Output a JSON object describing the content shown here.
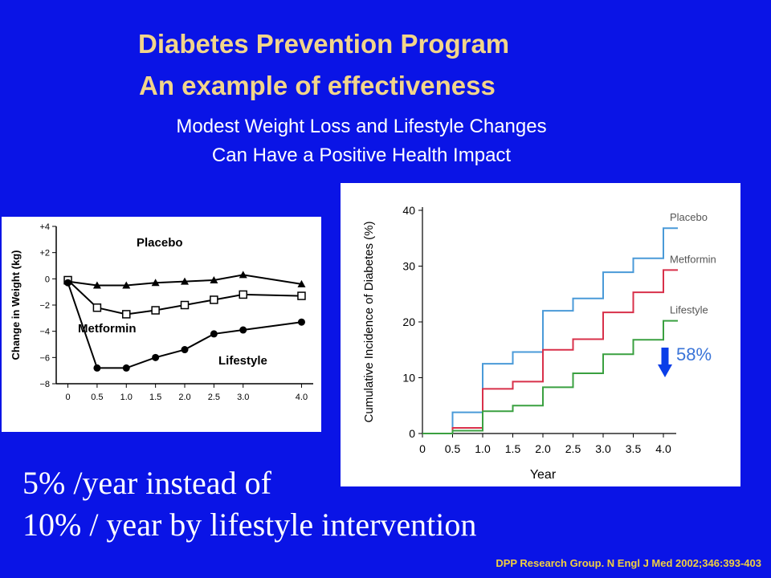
{
  "header": {
    "title_line1": "Diabetes Prevention Program",
    "title_line2": "An example of effectiveness",
    "subtitle_line1": "Modest Weight Loss and Lifestyle Changes",
    "subtitle_line2": "Can Have a Positive Health Impact"
  },
  "overlay_labels": {
    "placebo": "Placebo",
    "metformin": "Metformin",
    "lifestyle": "Lifestyle"
  },
  "reduction": {
    "label": "58%",
    "arrow_color": "#0a3ee8",
    "text_color": "#3a74d8"
  },
  "body": {
    "line1": "5% /year instead of",
    "line2": "10% / year by lifestyle intervention"
  },
  "citation": "DPP Research Group. N Engl J Med 2002;346:393-403",
  "chart_data": [
    {
      "type": "line",
      "ylabel": "Change in Weight (kg)",
      "x": [
        0,
        0.5,
        1.0,
        1.5,
        2.0,
        2.5,
        3.0,
        4.0
      ],
      "x_tick_labels": [
        "0",
        "0.5",
        "1.0",
        "1.5",
        "2.0",
        "2.5",
        "3.0",
        "4.0"
      ],
      "y_ticks": [
        4,
        2,
        0,
        -2,
        -4,
        -6,
        -8
      ],
      "y_tick_labels": [
        "+4",
        "+2",
        "0",
        "−2",
        "−4",
        "−6",
        "−8"
      ],
      "xlim": [
        -0.2,
        4.2
      ],
      "ylim": [
        -8,
        4
      ],
      "series": [
        {
          "name": "Placebo",
          "marker": "triangle",
          "values": [
            -0.2,
            -0.5,
            -0.5,
            -0.3,
            -0.2,
            -0.1,
            0.3,
            -0.4
          ]
        },
        {
          "name": "Metformin",
          "marker": "square-open",
          "values": [
            -0.1,
            -2.2,
            -2.7,
            -2.4,
            -2.0,
            -1.6,
            -1.2,
            -1.3
          ]
        },
        {
          "name": "Lifestyle",
          "marker": "circle",
          "values": [
            -0.3,
            -6.8,
            -6.8,
            -6.0,
            -5.4,
            -4.2,
            -3.9,
            -3.3
          ]
        }
      ]
    },
    {
      "type": "line",
      "step": true,
      "ylabel": "Cumulative Incidence of Diabetes (%)",
      "xlabel": "Year",
      "x_ticks": [
        0,
        0.5,
        1.0,
        1.5,
        2.0,
        2.5,
        3.0,
        3.5,
        4.0
      ],
      "x_tick_labels": [
        "0",
        "0.5",
        "1.0",
        "1.5",
        "2.0",
        "2.5",
        "3.0",
        "3.5",
        "4.0"
      ],
      "y_ticks": [
        0,
        10,
        20,
        30,
        40
      ],
      "xlim": [
        0,
        4.0
      ],
      "ylim": [
        0,
        40
      ],
      "x": [
        0,
        0.5,
        1.0,
        1.5,
        2.0,
        2.5,
        3.0,
        3.5,
        4.0
      ],
      "series": [
        {
          "name": "Placebo",
          "color": "#4a9ad8",
          "values": [
            0,
            3.8,
            12.5,
            14.6,
            22.0,
            24.2,
            28.9,
            31.4,
            36.8
          ]
        },
        {
          "name": "Metformin",
          "color": "#d8304a",
          "values": [
            0,
            1.0,
            8.0,
            9.3,
            15.0,
            16.9,
            21.7,
            25.3,
            29.3
          ]
        },
        {
          "name": "Lifestyle",
          "color": "#3aa040",
          "values": [
            0,
            0.5,
            4.0,
            5.0,
            8.3,
            10.8,
            14.2,
            16.8,
            20.2
          ]
        }
      ]
    }
  ]
}
